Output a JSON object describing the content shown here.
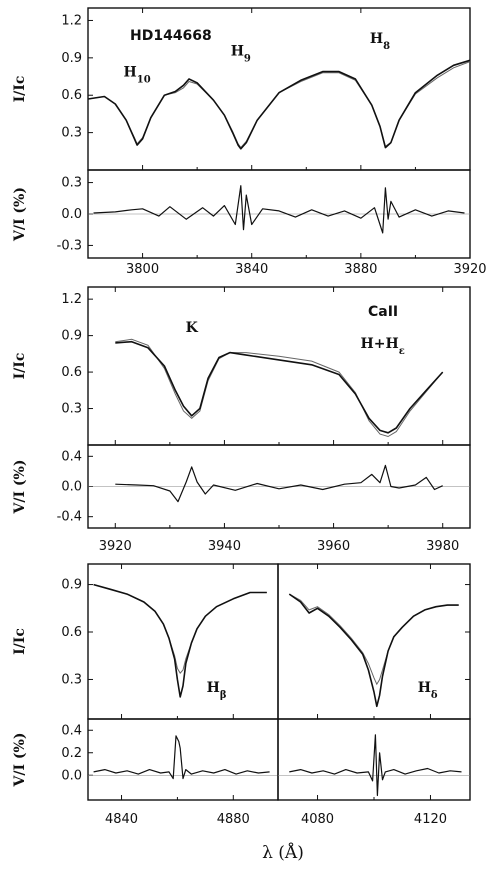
{
  "figure": {
    "xlabel": "λ (Å)"
  },
  "chart_data": [
    {
      "type": "line",
      "title": "HD144668",
      "xlim": [
        3780,
        3920
      ],
      "xticks": [
        3800,
        3840,
        3880,
        3920
      ],
      "intensity": {
        "ylabel": "I/Ic",
        "ylim": [
          0.0,
          1.3
        ],
        "yticks": [
          "1.2",
          "0.9",
          "0.6",
          "0.3"
        ],
        "yticks_values": [
          1.2,
          0.9,
          0.6,
          0.3
        ],
        "series": [
          {
            "x": [
              3780,
              3786,
              3790,
              3794,
              3797,
              3798,
              3800,
              3803,
              3808,
              3812,
              3815,
              3817,
              3820,
              3826,
              3830,
              3833,
              3835,
              3836,
              3838,
              3842,
              3850,
              3858,
              3866,
              3872,
              3878,
              3884,
              3887,
              3889,
              3891,
              3894,
              3900,
              3908,
              3914,
              3920
            ],
            "y": [
              0.57,
              0.59,
              0.53,
              0.4,
              0.25,
              0.2,
              0.25,
              0.42,
              0.6,
              0.63,
              0.68,
              0.73,
              0.7,
              0.56,
              0.44,
              0.3,
              0.2,
              0.17,
              0.22,
              0.4,
              0.62,
              0.72,
              0.79,
              0.79,
              0.73,
              0.52,
              0.35,
              0.18,
              0.22,
              0.4,
              0.62,
              0.76,
              0.84,
              0.88
            ]
          },
          {
            "x": [
              3780,
              3786,
              3790,
              3794,
              3797,
              3798,
              3800,
              3803,
              3808,
              3812,
              3815,
              3817,
              3820,
              3826,
              3830,
              3833,
              3835,
              3836,
              3838,
              3842,
              3850,
              3858,
              3866,
              3872,
              3878,
              3884,
              3887,
              3889,
              3891,
              3894,
              3900,
              3908,
              3914,
              3920
            ],
            "y": [
              0.57,
              0.59,
              0.53,
              0.4,
              0.26,
              0.21,
              0.26,
              0.42,
              0.6,
              0.62,
              0.66,
              0.71,
              0.69,
              0.56,
              0.44,
              0.31,
              0.21,
              0.18,
              0.23,
              0.4,
              0.62,
              0.71,
              0.78,
              0.78,
              0.72,
              0.52,
              0.35,
              0.19,
              0.22,
              0.4,
              0.61,
              0.74,
              0.82,
              0.87
            ]
          }
        ],
        "annotations": [
          {
            "text": "H",
            "sub": "10",
            "x": 3798,
            "y": 0.75
          },
          {
            "text": "H",
            "sub": "9",
            "x": 3836,
            "y": 0.92
          },
          {
            "text": "H",
            "sub": "8",
            "x": 3887,
            "y": 1.02
          }
        ]
      },
      "polarization": {
        "ylabel": "V/I (%)",
        "ylim": [
          -0.42,
          0.42
        ],
        "yticks": [
          "0.3",
          "0.0",
          "-0.3"
        ],
        "yticks_values": [
          0.3,
          0.0,
          -0.3
        ],
        "x": [
          3782,
          3790,
          3796,
          3800,
          3806,
          3810,
          3816,
          3822,
          3826,
          3830,
          3834,
          3836,
          3837,
          3838,
          3840,
          3844,
          3850,
          3856,
          3862,
          3868,
          3874,
          3880,
          3885,
          3888,
          3889,
          3890,
          3891,
          3894,
          3900,
          3906,
          3912,
          3918
        ],
        "y": [
          0.01,
          0.02,
          0.04,
          0.05,
          -0.02,
          0.07,
          -0.05,
          0.06,
          -0.02,
          0.08,
          -0.1,
          0.27,
          -0.15,
          0.18,
          -0.1,
          0.05,
          0.03,
          -0.03,
          0.04,
          -0.02,
          0.03,
          -0.04,
          0.06,
          -0.18,
          0.25,
          -0.05,
          0.12,
          -0.03,
          0.04,
          -0.02,
          0.03,
          0.01
        ]
      }
    },
    {
      "type": "line",
      "title": "CaII",
      "xlim": [
        3915,
        3985
      ],
      "xticks": [
        3920,
        3940,
        3960,
        3980
      ],
      "intensity": {
        "ylabel": "I/Ic",
        "ylim": [
          0.0,
          1.3
        ],
        "yticks": [
          "1.2",
          "0.9",
          "0.6",
          "0.3"
        ],
        "yticks_values": [
          1.2,
          0.9,
          0.6,
          0.3
        ],
        "series": [
          {
            "x": [
              3920,
              3923,
              3926,
              3929,
              3931,
              3932.5,
              3934,
              3935.5,
              3937,
              3939,
              3941,
              3944,
              3950,
              3956,
              3961,
              3964,
              3966.5,
              3968.5,
              3970,
              3971.5,
              3974,
              3977,
              3980
            ],
            "y": [
              0.84,
              0.85,
              0.8,
              0.65,
              0.45,
              0.32,
              0.24,
              0.3,
              0.55,
              0.72,
              0.76,
              0.74,
              0.7,
              0.66,
              0.58,
              0.42,
              0.22,
              0.12,
              0.1,
              0.14,
              0.3,
              0.45,
              0.6
            ]
          },
          {
            "x": [
              3920,
              3923,
              3926,
              3929,
              3931,
              3932.5,
              3934,
              3935.5,
              3937,
              3939,
              3941,
              3944,
              3950,
              3956,
              3961,
              3964,
              3966.5,
              3968.5,
              3970,
              3971.5,
              3974,
              3977,
              3980
            ],
            "y": [
              0.85,
              0.87,
              0.82,
              0.63,
              0.42,
              0.28,
              0.22,
              0.28,
              0.53,
              0.71,
              0.76,
              0.76,
              0.73,
              0.69,
              0.6,
              0.43,
              0.2,
              0.09,
              0.07,
              0.11,
              0.28,
              0.44,
              0.6
            ]
          }
        ],
        "annotations": [
          {
            "text": "K",
            "x": 3934,
            "y": 0.93
          },
          {
            "text": "H+H",
            "sub": "ε",
            "x": 3969,
            "y": 0.8
          }
        ]
      },
      "polarization": {
        "ylabel": "V/I (%)",
        "ylim": [
          -0.55,
          0.55
        ],
        "yticks": [
          "0.4",
          "0.0",
          "-0.4"
        ],
        "yticks_values": [
          0.4,
          0.0,
          -0.4
        ],
        "x": [
          3920,
          3924,
          3927,
          3930,
          3931.5,
          3933,
          3934,
          3935,
          3936.5,
          3938,
          3942,
          3946,
          3950,
          3954,
          3958,
          3962,
          3965,
          3967,
          3968.5,
          3969.5,
          3970.5,
          3972,
          3975,
          3977,
          3978.5,
          3980
        ],
        "y": [
          0.03,
          0.02,
          0.01,
          -0.06,
          -0.2,
          0.06,
          0.26,
          0.06,
          -0.1,
          0.02,
          -0.05,
          0.04,
          -0.03,
          0.02,
          -0.04,
          0.03,
          0.05,
          0.16,
          0.05,
          0.28,
          0.0,
          -0.02,
          0.02,
          0.12,
          -0.04,
          0.01
        ]
      }
    },
    {
      "type": "line",
      "title": "",
      "xlim": [
        4828,
        4896
      ],
      "xticks": [
        4840,
        4880
      ],
      "intensity": {
        "ylabel": "I/Ic",
        "ylim": [
          0.05,
          1.03
        ],
        "yticks": [
          "0.9",
          "0.6",
          "0.3"
        ],
        "yticks_values": [
          0.9,
          0.6,
          0.3
        ],
        "series": [
          {
            "x": [
              4830,
              4836,
              4842,
              4848,
              4852,
              4855,
              4857,
              4859,
              4860,
              4861,
              4862,
              4863,
              4865,
              4867,
              4870,
              4874,
              4880,
              4886,
              4892
            ],
            "y": [
              0.9,
              0.87,
              0.84,
              0.79,
              0.73,
              0.65,
              0.56,
              0.43,
              0.3,
              0.19,
              0.26,
              0.4,
              0.53,
              0.62,
              0.7,
              0.76,
              0.81,
              0.85,
              0.85
            ]
          },
          {
            "x": [
              4830,
              4836,
              4842,
              4848,
              4852,
              4855,
              4857,
              4859,
              4860,
              4861,
              4862,
              4863,
              4865,
              4867,
              4870,
              4874,
              4880,
              4886,
              4892
            ],
            "y": [
              0.9,
              0.87,
              0.84,
              0.79,
              0.73,
              0.65,
              0.56,
              0.45,
              0.37,
              0.34,
              0.36,
              0.43,
              0.53,
              0.62,
              0.7,
              0.76,
              0.81,
              0.85,
              0.85
            ]
          }
        ],
        "annotations": [
          {
            "text": "H",
            "sub": "β",
            "x": 4874,
            "y": 0.22
          }
        ]
      },
      "polarization": {
        "ylabel": "V/I (%)",
        "ylim": [
          -0.22,
          0.5
        ],
        "yticks": [
          "0.4",
          "0.2",
          "0.0"
        ],
        "yticks_values": [
          0.4,
          0.2,
          0.0
        ],
        "x": [
          4830,
          4834,
          4838,
          4842,
          4846,
          4850,
          4854,
          4857,
          4858.5,
          4859.5,
          4860.5,
          4861,
          4862,
          4863,
          4865,
          4869,
          4873,
          4877,
          4881,
          4885,
          4889,
          4893
        ],
        "y": [
          0.03,
          0.05,
          0.02,
          0.04,
          0.01,
          0.05,
          0.02,
          0.03,
          -0.03,
          0.35,
          0.3,
          0.24,
          -0.03,
          0.05,
          0.01,
          0.04,
          0.02,
          0.05,
          0.01,
          0.04,
          0.02,
          0.03
        ]
      }
    },
    {
      "type": "line",
      "title": "",
      "xlim": [
        4066,
        4134
      ],
      "xticks": [
        4080,
        4120
      ],
      "intensity": {
        "ylabel": "",
        "ylim": [
          0.05,
          1.03
        ],
        "yticks": [],
        "yticks_values": [],
        "series": [
          {
            "x": [
              4070,
              4074,
              4077,
              4080,
              4084,
              4088,
              4092,
              4096,
              4098,
              4100,
              4101,
              4102,
              4103,
              4105,
              4107,
              4110,
              4114,
              4118,
              4122,
              4126,
              4130
            ],
            "y": [
              0.84,
              0.79,
              0.72,
              0.75,
              0.7,
              0.63,
              0.55,
              0.46,
              0.36,
              0.22,
              0.13,
              0.2,
              0.32,
              0.48,
              0.57,
              0.63,
              0.7,
              0.74,
              0.76,
              0.77,
              0.77
            ]
          },
          {
            "x": [
              4070,
              4074,
              4077,
              4080,
              4084,
              4088,
              4092,
              4096,
              4098,
              4100,
              4101,
              4102,
              4103,
              4105,
              4107,
              4110,
              4114,
              4118,
              4122,
              4126,
              4130
            ],
            "y": [
              0.84,
              0.8,
              0.74,
              0.76,
              0.71,
              0.64,
              0.56,
              0.47,
              0.4,
              0.31,
              0.27,
              0.3,
              0.36,
              0.48,
              0.57,
              0.63,
              0.7,
              0.74,
              0.76,
              0.77,
              0.77
            ]
          }
        ],
        "annotations": [
          {
            "text": "H",
            "sub": "δ",
            "x": 4119,
            "y": 0.22
          }
        ]
      },
      "polarization": {
        "ylabel": "",
        "ylim": [
          -0.22,
          0.5
        ],
        "yticks": [],
        "yticks_values": [],
        "x": [
          4070,
          4074,
          4078,
          4082,
          4086,
          4090,
          4094,
          4098,
          4099.5,
          4100.5,
          4101.2,
          4102,
          4103,
          4104,
          4107,
          4111,
          4115,
          4119,
          4123,
          4127,
          4131
        ],
        "y": [
          0.03,
          0.05,
          0.02,
          0.04,
          0.01,
          0.05,
          0.02,
          0.03,
          -0.05,
          0.36,
          -0.18,
          0.2,
          -0.04,
          0.03,
          0.05,
          0.01,
          0.04,
          0.06,
          0.02,
          0.04,
          0.03
        ]
      }
    }
  ]
}
